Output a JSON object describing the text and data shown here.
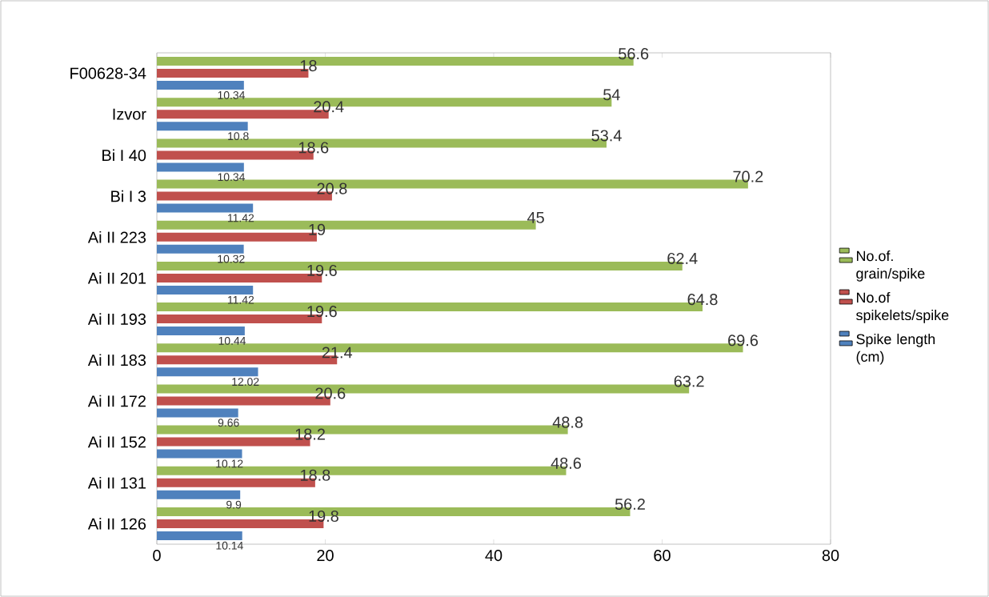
{
  "chart_data": {
    "type": "bar",
    "orientation": "horizontal",
    "categories": [
      "F00628-34",
      "Izvor",
      "Bi I 40",
      "Bi I 3",
      "Ai II 223",
      "Ai II 201",
      "Ai II 193",
      "Ai II 183",
      "Ai II 172",
      "Ai II 152",
      "Ai II 131",
      "Ai II 126"
    ],
    "series": [
      {
        "name": "No.of. grain/spike",
        "color": "#9bbb59",
        "values": [
          56.6,
          54,
          53.4,
          70.2,
          45,
          62.4,
          64.8,
          69.6,
          63.2,
          48.8,
          48.6,
          56.2
        ]
      },
      {
        "name": "No.of spikelets/spike",
        "color": "#c0504d",
        "values": [
          18,
          20.4,
          18.6,
          20.8,
          19,
          19.6,
          19.6,
          21.4,
          20.6,
          18.2,
          18.8,
          19.8
        ]
      },
      {
        "name": "Spike length (cm)",
        "color": "#4f81bd",
        "values": [
          10.34,
          10.8,
          10.34,
          11.42,
          10.32,
          11.42,
          10.44,
          12.02,
          9.66,
          10.12,
          9.9,
          10.14
        ]
      }
    ],
    "xlim": [
      0,
      80
    ],
    "xticks": [
      0,
      20,
      40,
      60,
      80
    ],
    "data_labels": true,
    "legend": "right"
  }
}
